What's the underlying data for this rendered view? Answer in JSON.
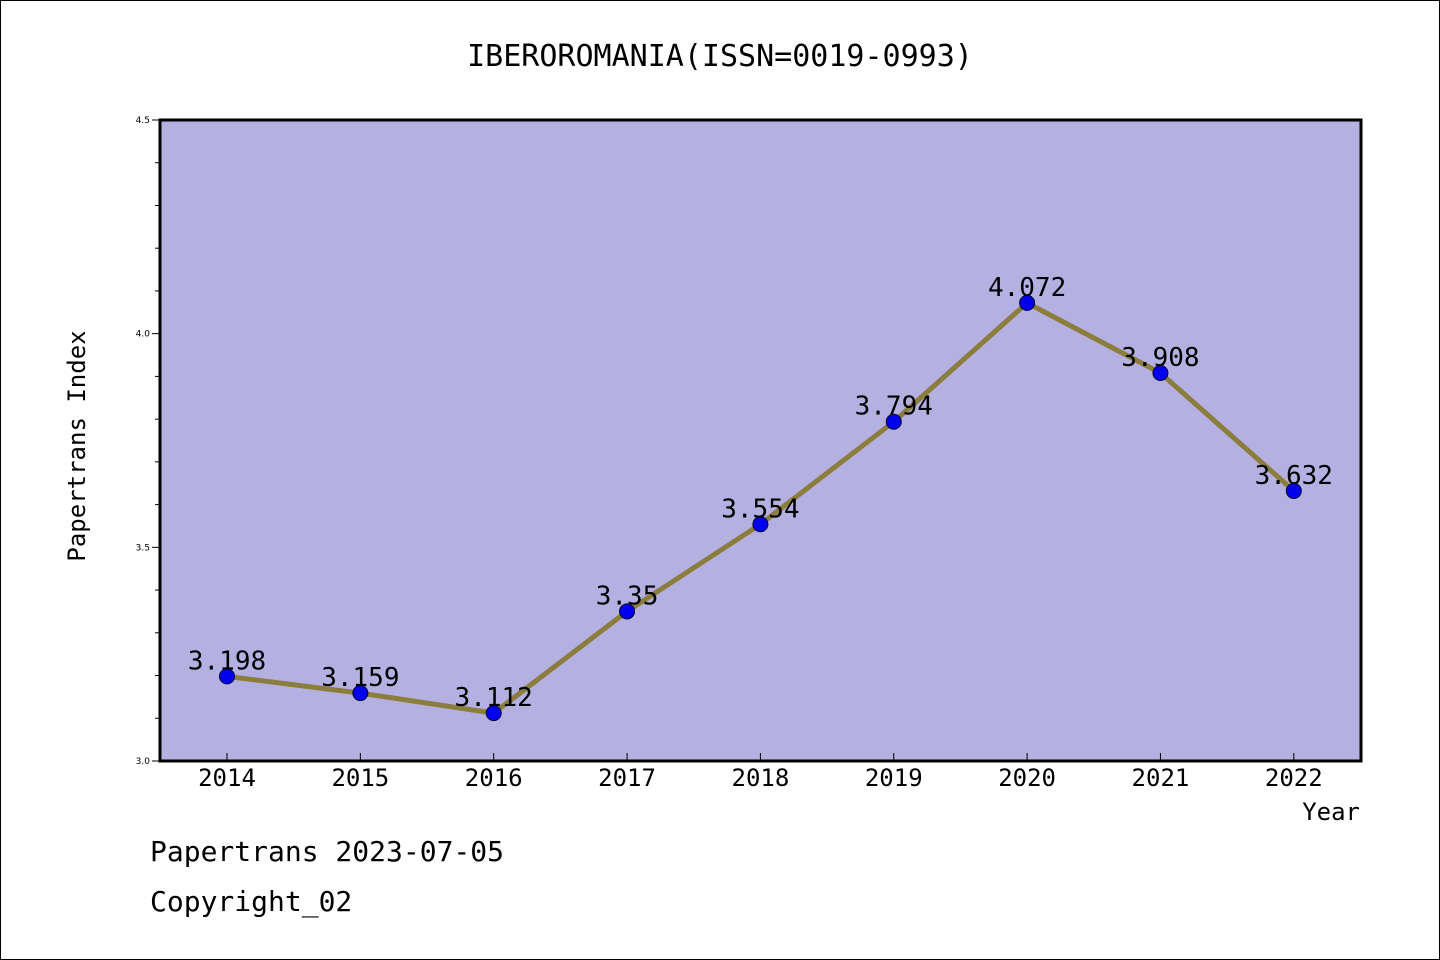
{
  "chart_data": {
    "type": "line",
    "title": "IBEROROMANIA(ISSN=0019-0993)",
    "xlabel": "Year",
    "ylabel": "Papertrans Index",
    "categories": [
      "2014",
      "2015",
      "2016",
      "2017",
      "2018",
      "2019",
      "2020",
      "2021",
      "2022"
    ],
    "series": [
      {
        "values": [
          3.198,
          3.159,
          3.112,
          3.35,
          3.554,
          3.794,
          4.072,
          3.908,
          3.632
        ],
        "labels": [
          "3.198",
          "3.159",
          "3.112",
          "3.35",
          "3.554",
          "3.794",
          "4.072",
          "3.908",
          "3.632"
        ]
      }
    ],
    "ylim": [
      3.0,
      4.5
    ],
    "yticks": [
      3.0,
      3.5,
      4.0,
      4.5
    ],
    "ytick_labels": [
      "3.0",
      "3.5",
      "4.0",
      "4.5"
    ],
    "grid": false,
    "colors": {
      "plot_background": "#b5b0e2",
      "line": "#8b7d3c",
      "marker": "#0000ee"
    }
  },
  "footer": {
    "line1": "Papertrans 2023-07-05",
    "line2": "Copyright_02"
  }
}
